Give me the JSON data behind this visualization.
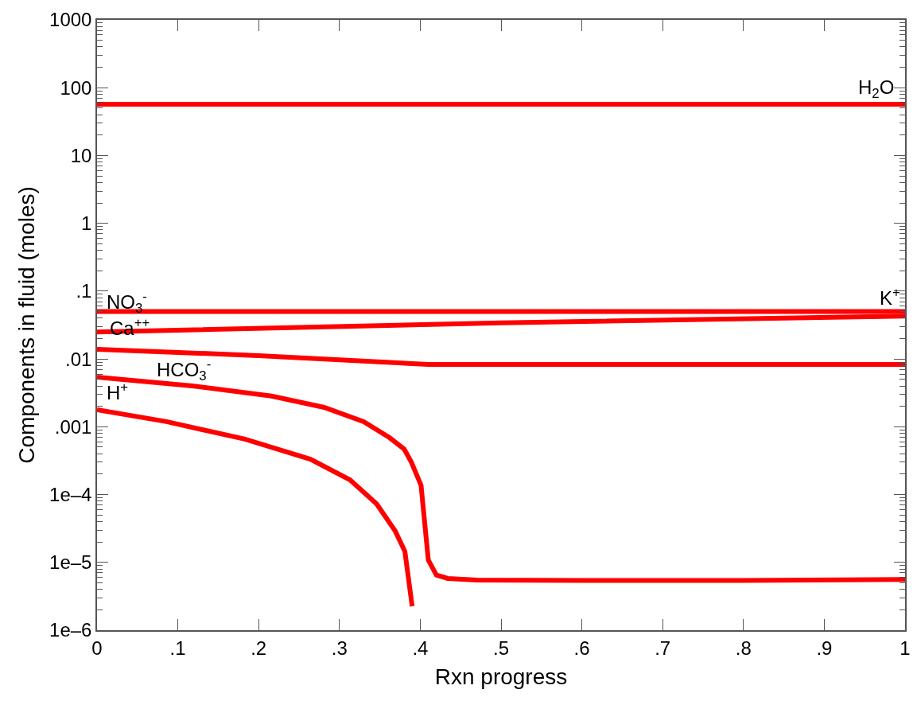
{
  "chart_data": {
    "type": "line",
    "xlabel": "Rxn progress",
    "ylabel": "Components in fluid (moles)",
    "log": "y",
    "marker": "none",
    "line_style": "solid",
    "xlim": [
      0,
      1
    ],
    "ylim": [
      1e-06,
      1000
    ],
    "xticks": [
      0,
      {
        "value": 0.1,
        "label": ".1"
      },
      {
        "value": 0.2,
        "label": ".2"
      },
      {
        "value": 0.3,
        "label": ".3"
      },
      {
        "value": 0.4,
        "label": ".4"
      },
      {
        "value": 0.5,
        "label": ".5"
      },
      {
        "value": 0.6,
        "label": ".6"
      },
      {
        "value": 0.7,
        "label": ".7"
      },
      {
        "value": 0.8,
        "label": ".8"
      },
      {
        "value": 0.9,
        "label": ".9"
      },
      1
    ],
    "yticks": [
      {
        "value": 1e-06,
        "label": "1e–6"
      },
      {
        "value": 1e-05,
        "label": "1e–5"
      },
      {
        "value": 0.0001,
        "label": "1e–4"
      },
      {
        "value": 0.001,
        "label": ".001"
      },
      {
        "value": 0.01,
        "label": ".01"
      },
      {
        "value": 0.1,
        "label": ".1"
      },
      1,
      10,
      100,
      1000,
      {
        "value": 2e-06,
        "label": null
      },
      {
        "value": 3e-06,
        "label": null
      },
      {
        "value": 4e-06,
        "label": null
      },
      {
        "value": 5e-06,
        "label": null
      },
      {
        "value": 6e-06,
        "label": null
      },
      {
        "value": 7e-06,
        "label": null
      },
      {
        "value": 8e-06,
        "label": null
      },
      {
        "value": 9e-06,
        "label": null
      },
      {
        "value": 2e-05,
        "label": null
      },
      {
        "value": 3e-05,
        "label": null
      },
      {
        "value": 4e-05,
        "label": null
      },
      {
        "value": 5e-05,
        "label": null
      },
      {
        "value": 6e-05,
        "label": null
      },
      {
        "value": 7e-05,
        "label": null
      },
      {
        "value": 8e-05,
        "label": null
      },
      {
        "value": 9e-05,
        "label": null
      },
      {
        "value": 0.0002,
        "label": null
      },
      {
        "value": 0.0003,
        "label": null
      },
      {
        "value": 0.0004,
        "label": null
      },
      {
        "value": 0.0005,
        "label": null
      },
      {
        "value": 0.0006,
        "label": null
      },
      {
        "value": 0.0007,
        "label": null
      },
      {
        "value": 0.0008,
        "label": null
      },
      {
        "value": 0.0009,
        "label": null
      },
      {
        "value": 0.002,
        "label": null
      },
      {
        "value": 0.003,
        "label": null
      },
      {
        "value": 0.004,
        "label": null
      },
      {
        "value": 0.005,
        "label": null
      },
      {
        "value": 0.006,
        "label": null
      },
      {
        "value": 0.007,
        "label": null
      },
      {
        "value": 0.008,
        "label": null
      },
      {
        "value": 0.009,
        "label": null
      },
      {
        "value": 0.02,
        "label": null
      },
      {
        "value": 0.03,
        "label": null
      },
      {
        "value": 0.04,
        "label": null
      },
      {
        "value": 0.05,
        "label": null
      },
      {
        "value": 0.06,
        "label": null
      },
      {
        "value": 0.07,
        "label": null
      },
      {
        "value": 0.08,
        "label": null
      },
      {
        "value": 0.09,
        "label": null
      },
      {
        "value": 0.2,
        "label": null
      },
      {
        "value": 0.3,
        "label": null
      },
      {
        "value": 0.4,
        "label": null
      },
      {
        "value": 0.5,
        "label": null
      },
      {
        "value": 0.6,
        "label": null
      },
      {
        "value": 0.7,
        "label": null
      },
      {
        "value": 0.8,
        "label": null
      },
      {
        "value": 0.9,
        "label": null
      },
      {
        "value": 2,
        "label": null
      },
      {
        "value": 3,
        "label": null
      },
      {
        "value": 4,
        "label": null
      },
      {
        "value": 5,
        "label": null
      },
      {
        "value": 6,
        "label": null
      },
      {
        "value": 7,
        "label": null
      },
      {
        "value": 8,
        "label": null
      },
      {
        "value": 9,
        "label": null
      },
      {
        "value": 20,
        "label": null
      },
      {
        "value": 30,
        "label": null
      },
      {
        "value": 40,
        "label": null
      },
      {
        "value": 50,
        "label": null
      },
      {
        "value": 60,
        "label": null
      },
      {
        "value": 70,
        "label": null
      },
      {
        "value": 80,
        "label": null
      },
      {
        "value": 90,
        "label": null
      },
      {
        "value": 200,
        "label": null
      },
      {
        "value": 300,
        "label": null
      },
      {
        "value": 400,
        "label": null
      },
      {
        "value": 500,
        "label": null
      },
      {
        "value": 600,
        "label": null
      },
      {
        "value": 700,
        "label": null
      },
      {
        "value": 800,
        "label": null
      },
      {
        "value": 900,
        "label": null
      }
    ],
    "series": [
      {
        "color": "#ff0000",
        "x": [
          0,
          1
        ],
        "values": [
          57,
          57
        ]
      },
      {
        "color": "#ff0000",
        "x": [
          0,
          1
        ],
        "values": [
          0.05,
          0.05
        ]
      },
      {
        "color": "#ff0000",
        "x": [
          0,
          0.5,
          1
        ],
        "values": [
          0.025,
          0.034,
          0.043
        ]
      },
      {
        "color": "#ff0000",
        "x": [
          0,
          0.2,
          0.41,
          1
        ],
        "values": [
          0.0139,
          0.0112,
          0.0083,
          0.0083
        ]
      },
      {
        "color": "#ff0000",
        "x": [
          0,
          0.118,
          0.216,
          0.281,
          0.33,
          0.362,
          0.38,
          0.389,
          0.401,
          0.41,
          0.42,
          0.434,
          0.47,
          0.6,
          0.8,
          1
        ],
        "values": [
          0.0054,
          0.004,
          0.00283,
          0.00193,
          0.00119,
          0.00069,
          0.00047,
          0.0003,
          0.000137,
          1.08e-05,
          6.5e-06,
          5.8e-06,
          5.5e-06,
          5.4e-06,
          5.4e-06,
          5.6e-06
        ]
      },
      {
        "color": "#ff0000",
        "x": [
          0,
          0.086,
          0.183,
          0.264,
          0.313,
          0.346,
          0.369,
          0.381,
          0.39
        ],
        "values": [
          0.00178,
          0.00119,
          0.000656,
          0.000333,
          0.000165,
          7.3e-05,
          2.9e-05,
          1.45e-05,
          2.25e-06
        ]
      }
    ],
    "annotations": [
      "H$_{2}$O",
      "NO$_{3}$$^{-}$",
      "K$^{+}$",
      "Ca$^{++}$",
      "HCO$_{3}$$^{-}$",
      "H$^{+}$"
    ]
  }
}
